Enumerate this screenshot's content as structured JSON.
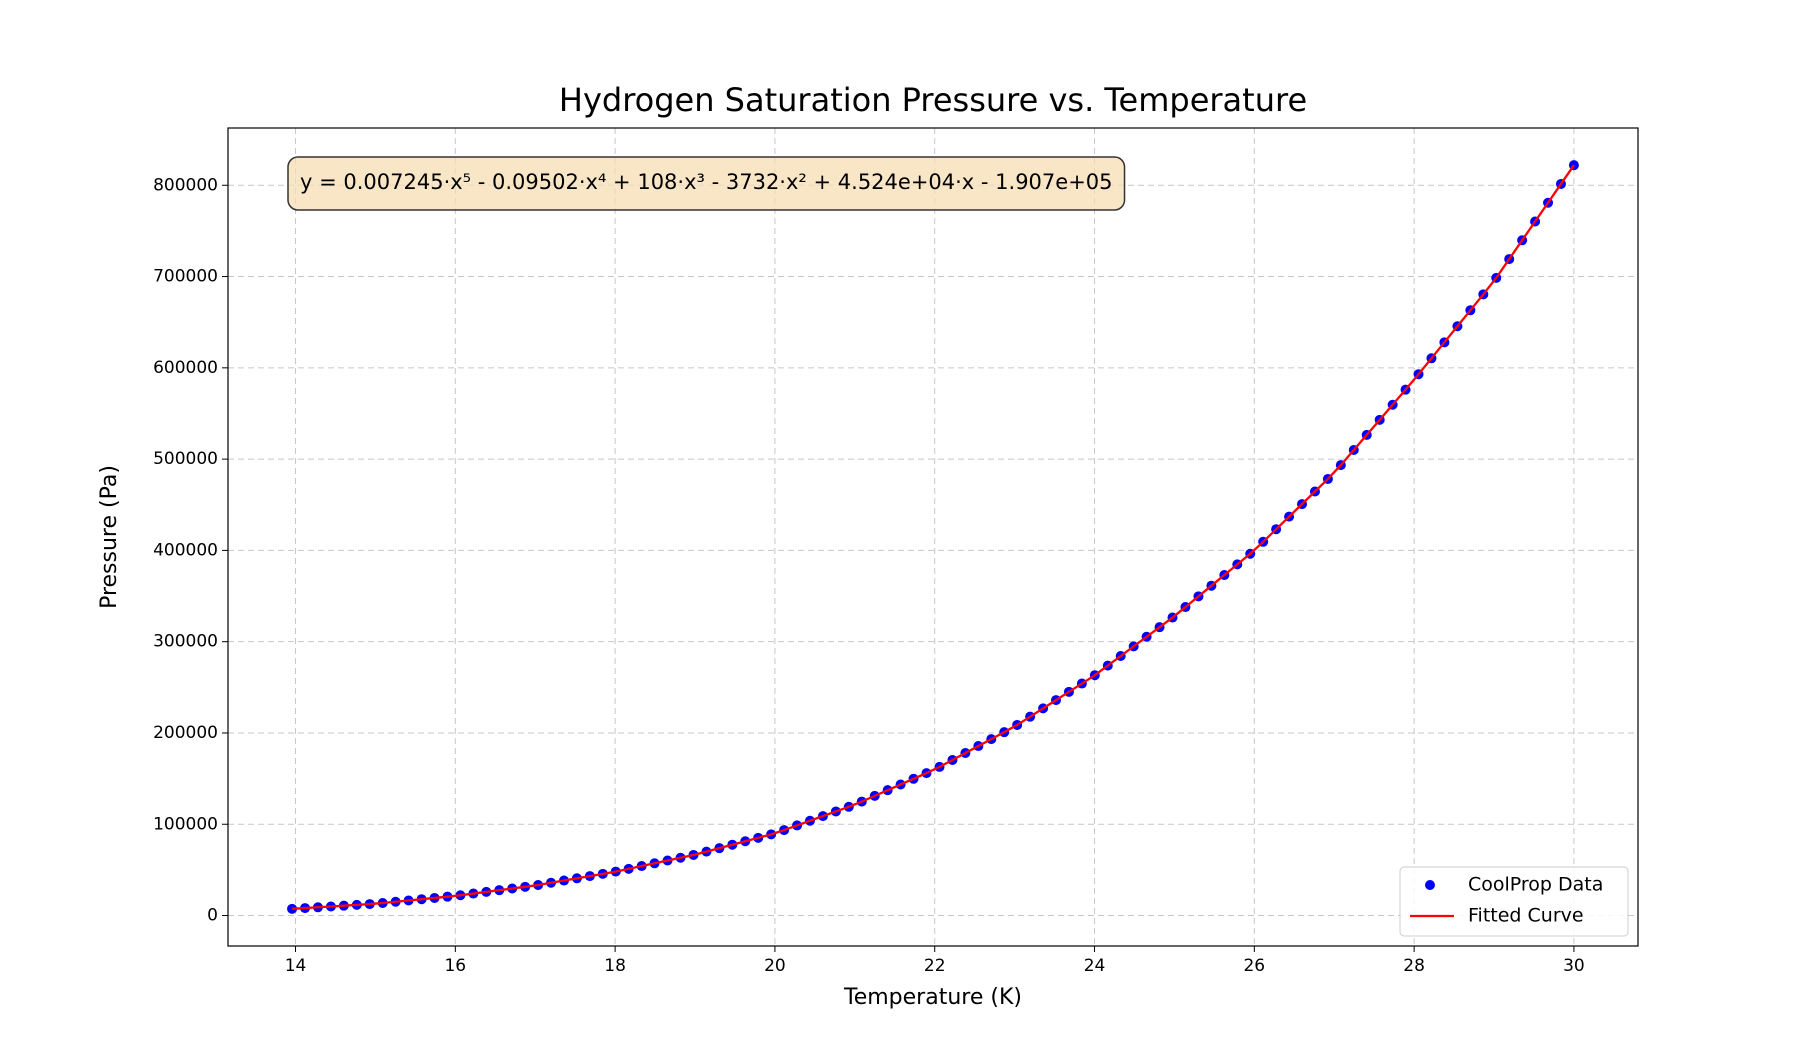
{
  "chart_data": {
    "type": "scatter-line",
    "title": "Hydrogen Saturation Pressure vs. Temperature",
    "xlabel": "Temperature (K)",
    "ylabel": "Pressure (Pa)",
    "annotation": "y = 0.007245·x⁵ - 0.09502·x⁴ + 108·x³ - 3732·x² + 4.524e+04·x - 1.907e+05",
    "xlim": [
      13.155,
      30.802
    ],
    "ylim": [
      -33374,
      862732
    ],
    "xticks": [
      14,
      16,
      18,
      20,
      22,
      24,
      26,
      28,
      30
    ],
    "yticks": [
      0,
      100000,
      200000,
      300000,
      400000,
      500000,
      600000,
      700000,
      800000
    ],
    "grid": true,
    "legend": "lower right",
    "x": [
      13.957,
      14.119,
      14.281,
      14.443,
      14.605,
      14.767,
      14.929,
      15.091,
      15.253,
      15.415,
      15.578,
      15.74,
      15.902,
      16.064,
      16.226,
      16.388,
      16.55,
      16.712,
      16.874,
      17.036,
      17.198,
      17.36,
      17.522,
      17.684,
      17.846,
      18.008,
      18.17,
      18.332,
      18.494,
      18.656,
      18.819,
      18.981,
      19.143,
      19.305,
      19.467,
      19.629,
      19.791,
      19.953,
      20.115,
      20.277,
      20.439,
      20.601,
      20.763,
      20.925,
      21.087,
      21.249,
      21.411,
      21.573,
      21.735,
      21.897,
      22.06,
      22.222,
      22.384,
      22.546,
      22.708,
      22.87,
      23.032,
      23.194,
      23.356,
      23.518,
      23.68,
      23.842,
      24.004,
      24.166,
      24.328,
      24.49,
      24.652,
      24.814,
      24.976,
      25.138,
      25.301,
      25.463,
      25.625,
      25.787,
      25.949,
      26.111,
      26.273,
      26.435,
      26.597,
      26.759,
      26.921,
      27.083,
      27.245,
      27.407,
      27.569,
      27.731,
      27.893,
      28.055,
      28.217,
      28.379,
      28.542,
      28.704,
      28.866,
      29.028,
      29.19,
      29.352,
      29.514,
      29.676,
      29.838,
      30.0
    ],
    "series": [
      {
        "name": "CoolProp Data",
        "color": "#0000ff",
        "style": "points",
        "values": [
          7358,
          8166,
          9046,
          9925,
          10805,
          11685,
          12564,
          13728,
          15113,
          16498,
          17892,
          19277,
          20662,
          22230,
          24076,
          25923,
          27770,
          29617,
          31464,
          33444,
          35890,
          38336,
          40782,
          43228,
          45675,
          48150,
          51179,
          54208,
          57238,
          60267,
          63315,
          66345,
          70032,
          73807,
          77581,
          81356,
          85130,
          88905,
          93623,
          98726,
          103829,
          108932,
          114035,
          119138,
          124850,
          131087,
          137324,
          143561,
          149798,
          156035,
          162820,
          170434,
          178048,
          185662,
          193276,
          200890,
          208792,
          217864,
          226936,
          236008,
          245080,
          254152,
          263260,
          273790,
          284320,
          294850,
          305380,
          315910,
          326440,
          337936,
          349672,
          361336,
          373000,
          384664,
          396328,
          409435,
          423205,
          436975,
          450745,
          464515,
          478285,
          493466,
          509990,
          526514,
          543038,
          559562,
          576086,
          592940,
          610436,
          627932,
          645536,
          663032,
          680528,
          698556,
          719130,
          739704,
          760278,
          780852,
          801426,
          822000
        ]
      },
      {
        "name": "Fitted Curve",
        "color": "#ff0000",
        "style": "line",
        "values": [
          7358,
          8166,
          9046,
          9925,
          10805,
          11685,
          12564,
          13728,
          15113,
          16498,
          17892,
          19277,
          20662,
          22230,
          24076,
          25923,
          27770,
          29617,
          31464,
          33444,
          35890,
          38336,
          40782,
          43228,
          45675,
          48150,
          51179,
          54208,
          57238,
          60267,
          63315,
          66345,
          70032,
          73807,
          77581,
          81356,
          85130,
          88905,
          93623,
          98726,
          103829,
          108932,
          114035,
          119138,
          124850,
          131087,
          137324,
          143561,
          149798,
          156035,
          162820,
          170434,
          178048,
          185662,
          193276,
          200890,
          208792,
          217864,
          226936,
          236008,
          245080,
          254152,
          263260,
          273790,
          284320,
          294850,
          305380,
          315910,
          326440,
          337936,
          349672,
          361336,
          373000,
          384664,
          396328,
          409435,
          423205,
          436975,
          450745,
          464515,
          478285,
          493466,
          509990,
          526514,
          543038,
          559562,
          576086,
          592940,
          610436,
          627932,
          645536,
          663032,
          680528,
          698556,
          719130,
          739704,
          760278,
          780852,
          801426,
          822000
        ]
      }
    ]
  }
}
